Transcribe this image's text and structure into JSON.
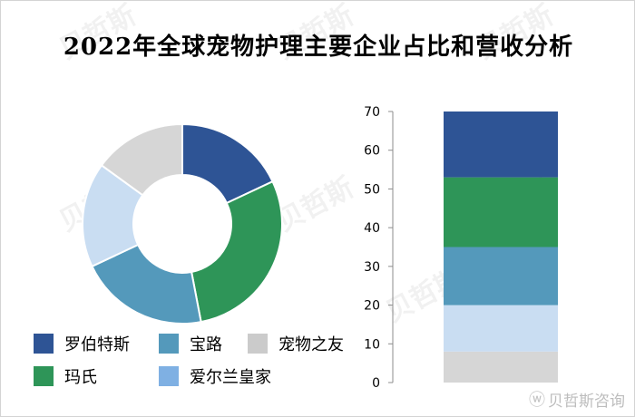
{
  "title": "2022年全球宠物护理主要企业占比和营收分析",
  "watermark": {
    "text": "贝哲斯"
  },
  "footer": {
    "icon": "weibo-icon",
    "text": "贝哲斯咨询"
  },
  "chart_data": [
    {
      "type": "donut",
      "title": "",
      "start_angle_deg": 0,
      "direction": "clockwise",
      "slices": [
        {
          "name": "罗伯特斯",
          "value": 18,
          "color": "#2e5495"
        },
        {
          "name": "玛氏",
          "value": 29,
          "color": "#2e9558"
        },
        {
          "name": "宝路",
          "value": 21,
          "color": "#5499bb"
        },
        {
          "name": "爱尔兰皇家",
          "value": 17,
          "color": "#c9ddf2"
        },
        {
          "name": "宠物之友",
          "value": 15,
          "color": "#d6d6d6"
        }
      ]
    },
    {
      "type": "bar",
      "stacked": true,
      "categories": [
        ""
      ],
      "ylim": [
        0,
        70
      ],
      "yticks": [
        0,
        10,
        20,
        30,
        40,
        50,
        60,
        70
      ],
      "xlabel": "",
      "ylabel": "",
      "grid": false,
      "series": [
        {
          "name": "宠物之友",
          "values": [
            8
          ],
          "color": "#d6d6d6"
        },
        {
          "name": "爱尔兰皇家",
          "values": [
            12
          ],
          "color": "#c9ddf2"
        },
        {
          "name": "宝路",
          "values": [
            15
          ],
          "color": "#5499bb"
        },
        {
          "name": "玛氏",
          "values": [
            18
          ],
          "color": "#2e9558"
        },
        {
          "name": "罗伯特斯",
          "values": [
            17
          ],
          "color": "#2e5495"
        }
      ]
    }
  ],
  "legend": {
    "placement": "bottom-left",
    "items": [
      {
        "label": "罗伯特斯",
        "color": "#2e5495"
      },
      {
        "label": "宝路",
        "color": "#5499bb"
      },
      {
        "label": "宠物之友",
        "color": "#cbcbcb"
      },
      {
        "label": "玛氏",
        "color": "#2e9558"
      },
      {
        "label": "爱尔兰皇家",
        "color": "#7fb0e3"
      }
    ]
  }
}
